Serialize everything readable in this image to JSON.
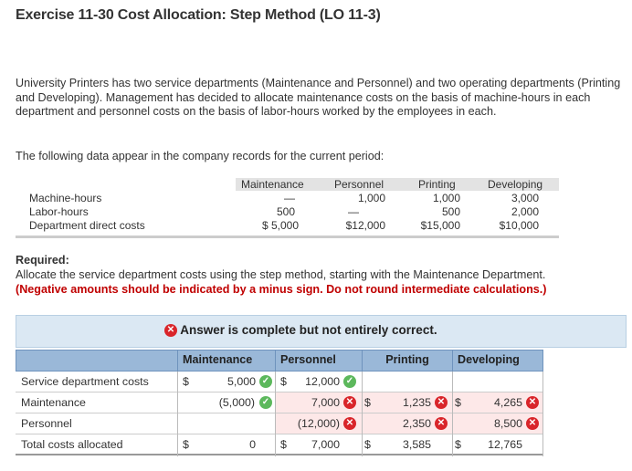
{
  "title": "Exercise 11-30 Cost Allocation: Step Method (LO 11-3)",
  "intro": "University Printers has two service departments (Maintenance and Personnel) and two operating departments (Printing and Developing). Management has decided to allocate maintenance costs on the basis of machine-hours in each department and personnel costs on the basis of labor-hours worked by the employees in each.",
  "data_intro": "The following data appear in the company records for the current period:",
  "data_table": {
    "headers": [
      "Maintenance",
      "Personnel",
      "Printing",
      "Developing"
    ],
    "rows": [
      {
        "label": "Machine-hours",
        "values": [
          "—",
          "1,000",
          "1,000",
          "3,000"
        ]
      },
      {
        "label": "Labor-hours",
        "values": [
          "500",
          "—",
          "500",
          "2,000"
        ]
      },
      {
        "label": "Department direct costs",
        "values": [
          "$ 5,000",
          "$12,000",
          "$15,000",
          "$10,000"
        ]
      }
    ]
  },
  "required_label": "Required:",
  "required_text": "Allocate the service department costs using the step method, starting with the Maintenance Department.",
  "required_note": "(Negative amounts should be indicated by a minus sign. Do not round intermediate calculations.)",
  "answer_status": "Answer is complete but not entirely correct.",
  "answer_table": {
    "headers": [
      "Maintenance",
      "Personnel",
      "Printing",
      "Developing"
    ],
    "rows": [
      {
        "label": "Service department costs",
        "maint_dollar": "$",
        "maint": "5,000",
        "maint_mark": "check",
        "pers_dollar": "$",
        "pers": "12,000",
        "pers_mark": "check",
        "print_dollar": "",
        "print": "",
        "print_mark": "",
        "dev_dollar": "",
        "dev": "",
        "dev_mark": ""
      },
      {
        "label": "Maintenance",
        "maint_dollar": "",
        "maint": "(5,000)",
        "maint_mark": "check",
        "pers_dollar": "",
        "pers": "7,000",
        "pers_mark": "x",
        "print_dollar": "$",
        "print": "1,235",
        "print_mark": "x",
        "dev_dollar": "$",
        "dev": "4,265",
        "dev_mark": "x"
      },
      {
        "label": "Personnel",
        "maint_dollar": "",
        "maint": "",
        "maint_mark": "",
        "pers_dollar": "",
        "pers": "(12,000)",
        "pers_mark": "x",
        "print_dollar": "",
        "print": "2,350",
        "print_mark": "x",
        "dev_dollar": "",
        "dev": "8,500",
        "dev_mark": "x"
      },
      {
        "label": "Total costs allocated",
        "maint_dollar": "$",
        "maint": "0",
        "maint_mark": "",
        "pers_dollar": "$",
        "pers": "7,000",
        "pers_mark": "",
        "print_dollar": "$",
        "print": "3,585",
        "print_mark": "",
        "dev_dollar": "$",
        "dev": "12,765",
        "dev_mark": ""
      }
    ]
  },
  "colors": {
    "header_blue": "#9ab8d8",
    "answer_banner": "#dbe8f3",
    "error_red": "#d9252a",
    "ok_green": "#5cb85c",
    "note_red": "#c00000"
  },
  "icons": {
    "incorrect": "x-circle-icon",
    "correct": "check-circle-icon"
  }
}
